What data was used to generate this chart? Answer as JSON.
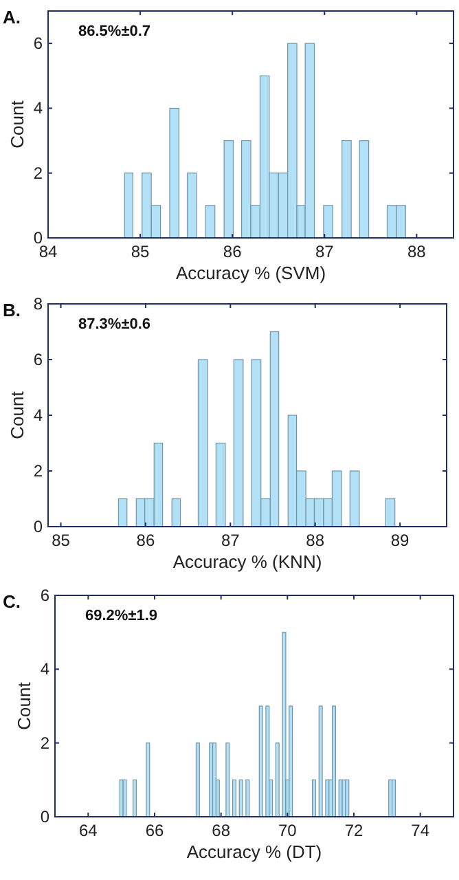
{
  "chart_data": [
    {
      "type": "histogram",
      "title": "A.",
      "xlabel": "Accuracy % (SVM)",
      "ylabel": "Count",
      "annotations": [
        "86.5%±0.7"
      ],
      "color": "#a9ddf6",
      "bins": [
        84.83,
        84.92,
        85.02,
        85.12,
        85.22,
        85.32,
        85.42,
        85.51,
        85.61,
        85.71,
        85.81,
        85.91,
        86.01,
        86.1,
        86.2,
        86.3,
        86.4,
        86.5,
        86.6,
        86.7,
        86.79,
        86.89,
        86.99,
        87.09,
        87.19,
        87.29,
        87.38,
        87.48,
        87.68,
        87.78,
        87.88
      ],
      "values": [
        2,
        0,
        2,
        1,
        0,
        4,
        0,
        2,
        0,
        1,
        0,
        3,
        0,
        3,
        1,
        5,
        2,
        2,
        6,
        1,
        6,
        0,
        1,
        0,
        3,
        0,
        3,
        0,
        1,
        1
      ],
      "xlim": [
        84,
        88.4
      ],
      "xticks": [
        84,
        85,
        86,
        87,
        88
      ],
      "ylim": [
        0,
        7
      ],
      "yticks": [
        0,
        2,
        4,
        6
      ]
    },
    {
      "type": "histogram",
      "title": "B.",
      "xlabel": "Accuracy % (KNN)",
      "ylabel": "Count",
      "annotations": [
        "87.3%±0.6"
      ],
      "color": "#a9ddf6",
      "bins": [
        85.68,
        85.78,
        85.89,
        85.99,
        86.1,
        86.2,
        86.31,
        86.41,
        86.62,
        86.73,
        86.83,
        86.94,
        87.04,
        87.15,
        87.25,
        87.36,
        87.47,
        87.57,
        87.68,
        87.78,
        87.89,
        87.99,
        88.1,
        88.2,
        88.31,
        88.41,
        88.52,
        88.83,
        88.94
      ],
      "values": [
        1,
        0,
        1,
        1,
        3,
        0,
        1,
        0,
        6,
        0,
        3,
        0,
        6,
        0,
        6,
        1,
        7,
        0,
        4,
        2,
        1,
        1,
        1,
        2,
        0,
        2,
        0,
        1
      ],
      "xlim": [
        84.85,
        89.55
      ],
      "xticks": [
        85,
        86,
        87,
        88,
        89
      ],
      "ylim": [
        0,
        8
      ],
      "yticks": [
        0,
        2,
        4,
        6,
        8
      ]
    },
    {
      "type": "histogram",
      "title": "C.",
      "xlabel": "Accuracy % (DT)",
      "ylabel": "Count",
      "annotations": [
        "69.2%±1.9"
      ],
      "color": "#a9ddf6",
      "bins": [
        64.95,
        65.05,
        65.15,
        65.25,
        65.35,
        65.45,
        65.55,
        65.65,
        65.75,
        65.85,
        65.95,
        66.05,
        66.15,
        66.25,
        66.35,
        66.45,
        66.55,
        66.65,
        66.75,
        66.85,
        66.95,
        67.05,
        67.15,
        67.25,
        67.35,
        67.45,
        67.55,
        67.65,
        67.75,
        67.85,
        67.95,
        68.05,
        68.15,
        68.25,
        68.35,
        68.45,
        68.55,
        68.65,
        68.75,
        68.85,
        68.95,
        69.05,
        69.15,
        69.25,
        69.35,
        69.45,
        69.55,
        69.65,
        69.75,
        69.85,
        69.95,
        70.05,
        70.15,
        70.25,
        70.35,
        70.45,
        70.55,
        70.65,
        70.75,
        70.85,
        70.95,
        71.05,
        71.15,
        71.25,
        71.35,
        71.45,
        71.55,
        71.65,
        71.75,
        71.85,
        71.95,
        72.05,
        72.15,
        72.25,
        72.35,
        72.45,
        72.55,
        72.65,
        72.75,
        72.85,
        72.95,
        73.05,
        73.15,
        73.25
      ],
      "values": [
        1,
        1,
        0,
        0,
        1,
        0,
        0,
        0,
        2,
        0,
        0,
        0,
        0,
        0,
        0,
        0,
        0,
        0,
        0,
        0,
        0,
        0,
        0,
        2,
        0,
        0,
        0,
        2,
        2,
        1,
        0,
        0,
        2,
        0,
        1,
        0,
        1,
        0,
        1,
        0,
        0,
        0,
        3,
        0,
        3,
        1,
        0,
        2,
        0,
        5,
        1,
        3,
        0,
        0,
        0,
        0,
        0,
        0,
        1,
        0,
        3,
        0,
        1,
        1,
        3,
        0,
        1,
        1,
        1,
        0,
        0,
        0,
        0,
        0,
        0,
        0,
        0,
        0,
        0,
        0,
        0,
        1,
        1
      ],
      "xlim": [
        63,
        75
      ],
      "xticks": [
        64,
        66,
        68,
        70,
        72,
        74
      ],
      "ylim": [
        0,
        6
      ],
      "yticks": [
        0,
        2,
        4,
        6
      ]
    }
  ]
}
